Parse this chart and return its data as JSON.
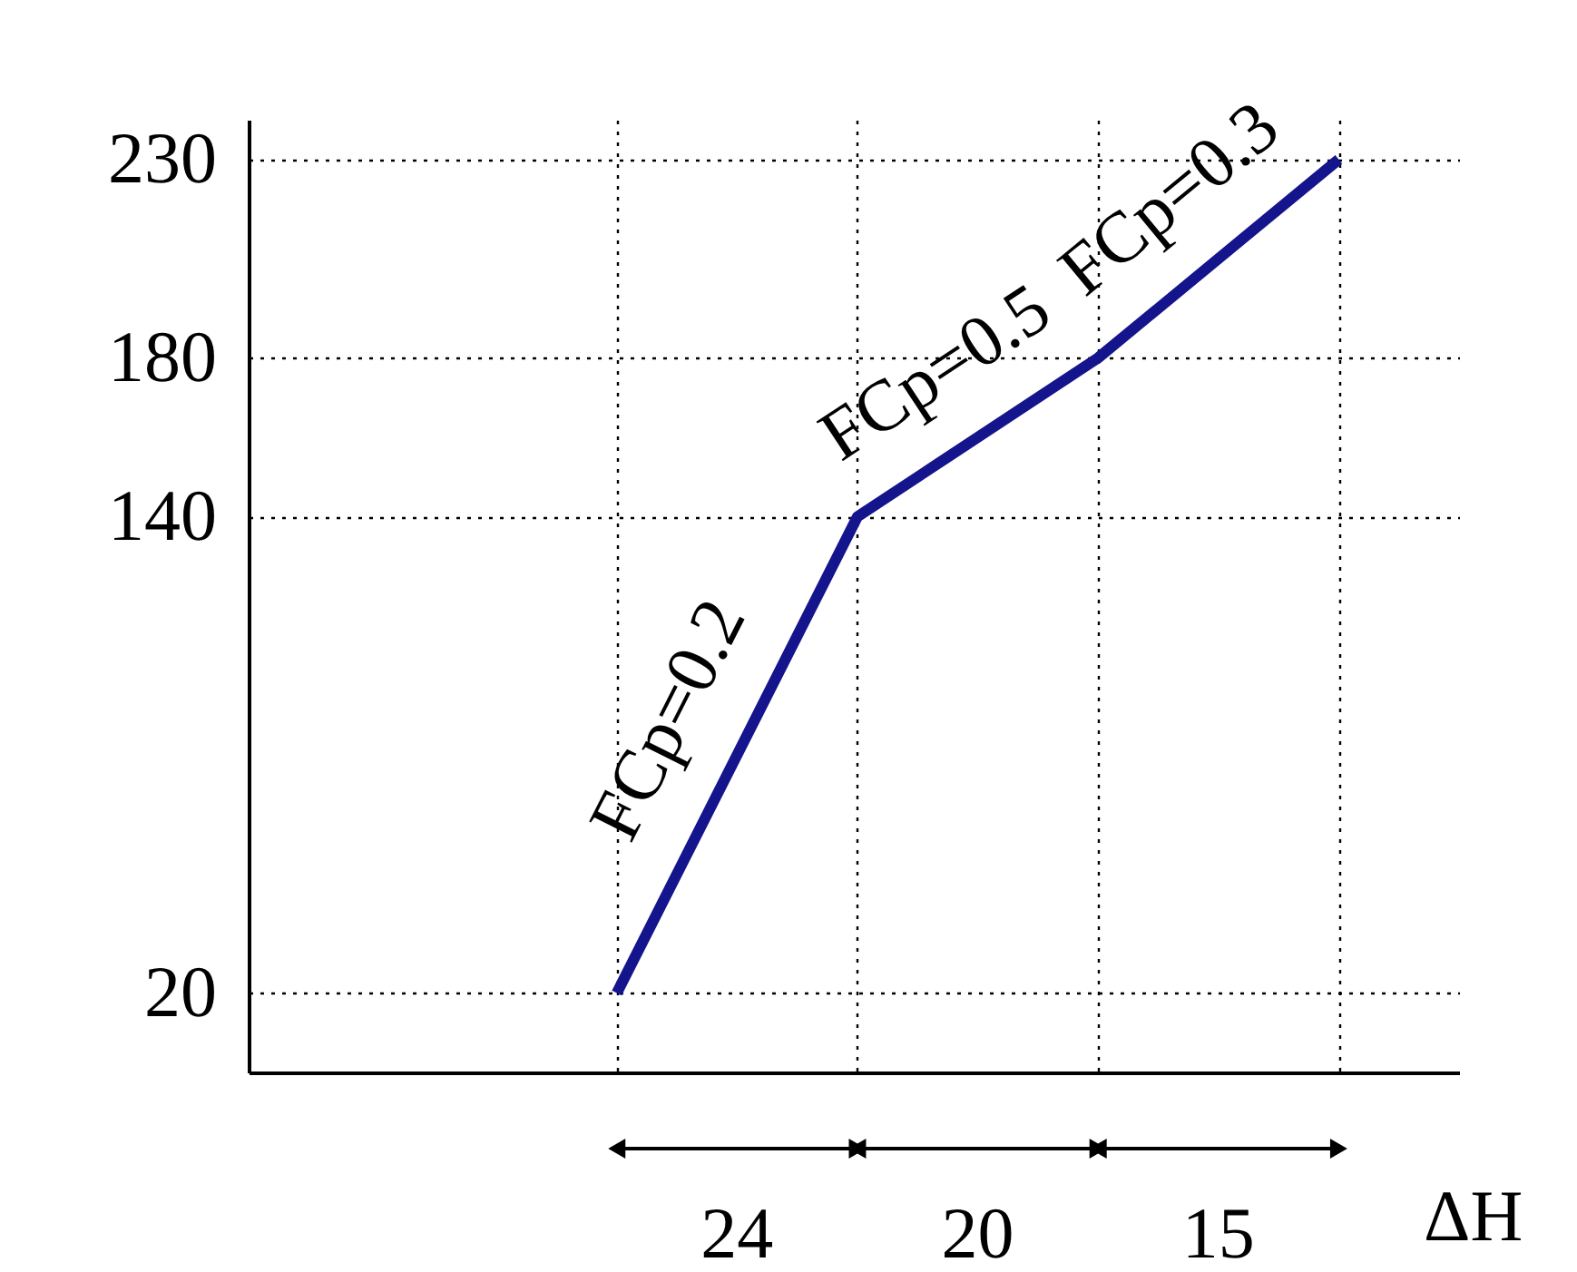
{
  "chart_data": {
    "type": "line",
    "xlabel": "ΔH",
    "categories": [
      null,
      null,
      null,
      null
    ],
    "series": [
      {
        "color": "#14148c",
        "values": [
          20,
          140,
          180,
          230
        ]
      }
    ],
    "ylim": [
      0,
      240
    ],
    "yticks": [
      20,
      140,
      180,
      230
    ],
    "tick_labels": "y",
    "grid": true,
    "marker": "none",
    "line_style": "solid",
    "annotations": [
      "FCp=0.2",
      "FCp=0.5",
      "FCp=0.3",
      "24",
      "20",
      "15"
    ]
  }
}
